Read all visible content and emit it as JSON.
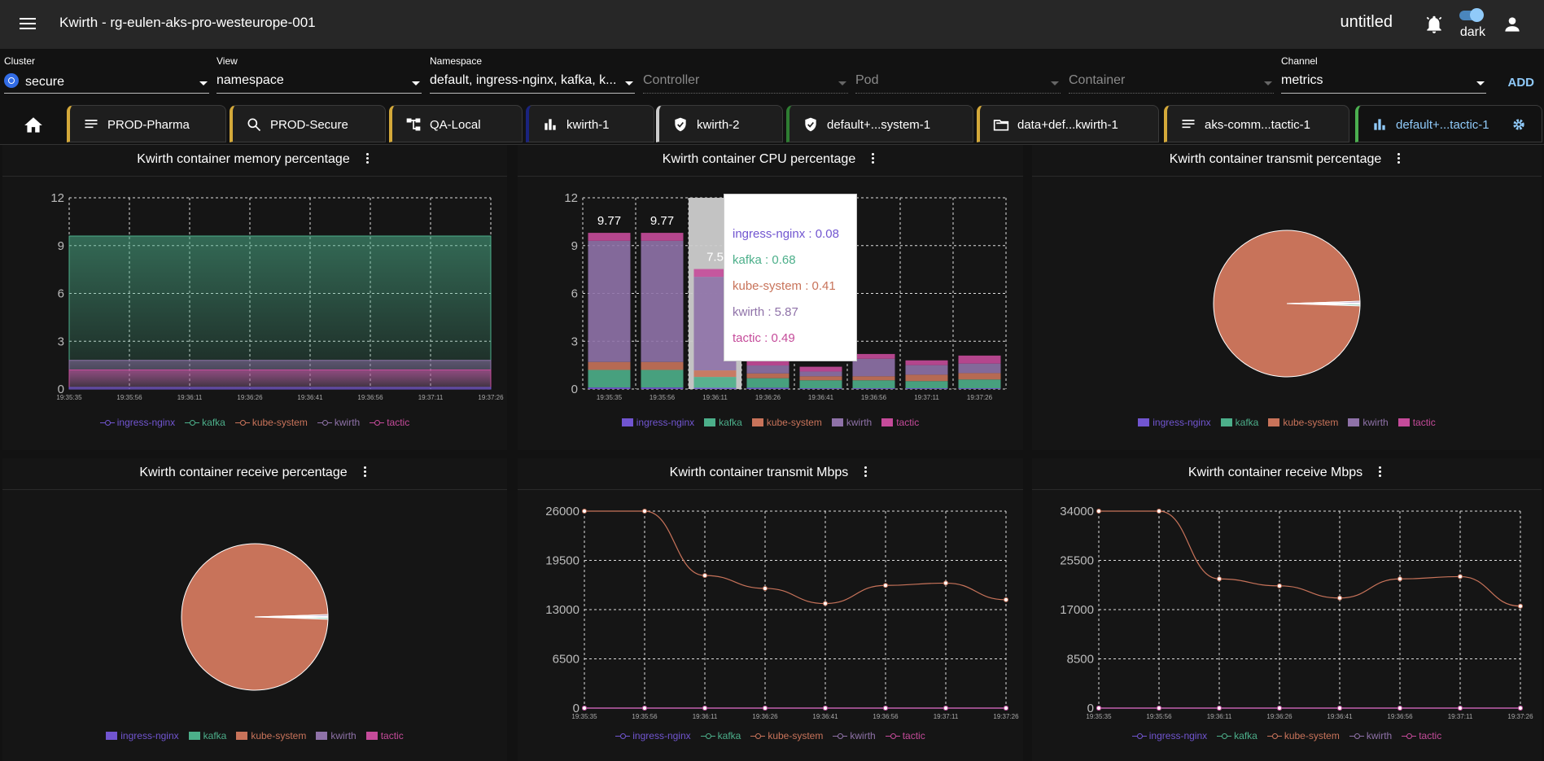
{
  "appbar": {
    "title": "Kwirth - rg-eulen-aks-pro-westeurope-001",
    "workspace": "untitled",
    "theme_label": "dark"
  },
  "filters": {
    "cluster": {
      "label": "Cluster",
      "value": "secure"
    },
    "view": {
      "label": "View",
      "value": "namespace"
    },
    "namespace": {
      "label": "Namespace",
      "value": "default, ingress-nginx, kafka, k..."
    },
    "controller": {
      "placeholder": "Controller"
    },
    "pod": {
      "placeholder": "Pod"
    },
    "container": {
      "placeholder": "Container"
    },
    "channel": {
      "label": "Channel",
      "value": "metrics"
    },
    "add_label": "ADD"
  },
  "tabs": [
    {
      "label": "PROD-Pharma",
      "icon": "lines-icon",
      "color": "#d4a93a"
    },
    {
      "label": "PROD-Secure",
      "icon": "search-icon",
      "color": "#d4a93a"
    },
    {
      "label": "QA-Local",
      "icon": "tree-icon",
      "color": "#d4a93a"
    },
    {
      "label": "kwirth-1",
      "icon": "bar-chart-icon",
      "color": "#1a237e"
    },
    {
      "label": "kwirth-2",
      "icon": "shield-icon",
      "color": "#cccccc"
    },
    {
      "label": "default+...system-1",
      "icon": "shield-icon",
      "color": "#2e7d32"
    },
    {
      "label": "data+def...kwirth-1",
      "icon": "folder-icon",
      "color": "#d4a93a"
    },
    {
      "label": "aks-comm...tactic-1",
      "icon": "lines-icon",
      "color": "#d4a93a"
    },
    {
      "label": "default+...tactic-1",
      "icon": "bar-chart-icon",
      "color": "#4caf50",
      "active": true
    }
  ],
  "series_colors": {
    "ingress-nginx": "#7155d0",
    "kafka": "#4caf8a",
    "kube-system": "#c8735a",
    "kwirth": "#8f72a8",
    "tactic": "#c54b9a"
  },
  "legend_names": [
    "ingress-nginx",
    "kafka",
    "kube-system",
    "kwirth",
    "tactic"
  ],
  "panels": {
    "memory": {
      "title": "Kwirth container memory percentage"
    },
    "cpu": {
      "title": "Kwirth container CPU percentage"
    },
    "transmit_pct": {
      "title": "Kwirth container transmit percentage"
    },
    "receive_pct": {
      "title": "Kwirth container receive percentage"
    },
    "transmit_mbps": {
      "title": "Kwirth container transmit Mbps"
    },
    "receive_mbps": {
      "title": "Kwirth container receive Mbps"
    }
  },
  "tooltip": {
    "lines": [
      {
        "text": "ingress-nginx : 0.08",
        "color": "#7155d0"
      },
      {
        "text": "kafka : 0.68",
        "color": "#4caf8a"
      },
      {
        "text": "kube-system : 0.41",
        "color": "#c8735a"
      },
      {
        "text": "kwirth : 5.87",
        "color": "#8f72a8"
      },
      {
        "text": "tactic : 0.49",
        "color": "#c54b9a"
      }
    ]
  },
  "chart_data": [
    {
      "id": "memory",
      "type": "area",
      "title": "Kwirth container memory percentage",
      "categories": [
        "19:35:35",
        "19:35:56",
        "19:36:11",
        "19:36:26",
        "19:36:41",
        "19:36:56",
        "19:37:11",
        "19:37:26"
      ],
      "ylim": [
        0,
        12
      ],
      "yticks": [
        0,
        3,
        6,
        9,
        12
      ],
      "series": [
        {
          "name": "ingress-nginx",
          "values": [
            0.1,
            0.1,
            0.1,
            0.1,
            0.1,
            0.1,
            0.1,
            0.1
          ]
        },
        {
          "name": "tactic",
          "values": [
            1.2,
            1.2,
            1.2,
            1.2,
            1.2,
            1.2,
            1.2,
            1.2
          ]
        },
        {
          "name": "kwirth",
          "values": [
            1.8,
            1.8,
            1.8,
            1.8,
            1.8,
            1.8,
            1.8,
            1.8
          ]
        },
        {
          "name": "kafka",
          "values": [
            9.6,
            9.6,
            9.6,
            9.6,
            9.6,
            9.6,
            9.6,
            9.6
          ]
        }
      ],
      "grid": true
    },
    {
      "id": "cpu",
      "type": "bar",
      "stacked": true,
      "title": "Kwirth container CPU percentage",
      "categories": [
        "19:35:35",
        "19:35:56",
        "19:36:11",
        "19:36:26",
        "19:36:41",
        "19:36:56",
        "19:37:11",
        "19:37:26"
      ],
      "ylim": [
        0,
        12
      ],
      "yticks": [
        0,
        3,
        6,
        9,
        12
      ],
      "series": [
        {
          "name": "ingress-nginx",
          "values": [
            0.1,
            0.1,
            0.08,
            0.08,
            0.05,
            0.05,
            0.05,
            0.05
          ]
        },
        {
          "name": "kafka",
          "values": [
            1.1,
            1.1,
            0.68,
            0.6,
            0.5,
            0.5,
            0.45,
            0.55
          ]
        },
        {
          "name": "kube-system",
          "values": [
            0.5,
            0.5,
            0.41,
            0.3,
            0.25,
            0.25,
            0.4,
            0.4
          ]
        },
        {
          "name": "kwirth",
          "values": [
            7.6,
            7.6,
            5.87,
            0.5,
            0.3,
            1.1,
            0.6,
            0.6
          ]
        },
        {
          "name": "tactic",
          "values": [
            0.5,
            0.5,
            0.49,
            0.4,
            0.3,
            0.3,
            0.3,
            0.5
          ]
        }
      ],
      "data_labels": [
        "9.77",
        "9.77",
        "7.5"
      ],
      "highlight_index": 2,
      "grid": true
    },
    {
      "id": "transmit_pct",
      "type": "pie",
      "title": "Kwirth container transmit percentage",
      "labels": [
        "ingress-nginx",
        "kafka",
        "kube-system",
        "kwirth",
        "tactic"
      ],
      "values": [
        0.2,
        0.3,
        99.0,
        0.3,
        0.2
      ]
    },
    {
      "id": "receive_pct",
      "type": "pie",
      "title": "Kwirth container receive percentage",
      "labels": [
        "ingress-nginx",
        "kafka",
        "kube-system",
        "kwirth",
        "tactic"
      ],
      "values": [
        0.2,
        0.3,
        99.0,
        0.3,
        0.2
      ]
    },
    {
      "id": "transmit_mbps",
      "type": "line",
      "title": "Kwirth container transmit Mbps",
      "categories": [
        "19:35:35",
        "19:35:56",
        "19:36:11",
        "19:36:26",
        "19:36:41",
        "19:36:56",
        "19:37:11",
        "19:37:26"
      ],
      "ylim": [
        0,
        26000
      ],
      "yticks": [
        0,
        6500,
        13000,
        19500,
        26000
      ],
      "series": [
        {
          "name": "ingress-nginx",
          "values": [
            0,
            0,
            0,
            0,
            0,
            0,
            0,
            0
          ]
        },
        {
          "name": "kafka",
          "values": [
            0,
            0,
            0,
            0,
            0,
            0,
            0,
            0
          ]
        },
        {
          "name": "kube-system",
          "values": [
            26000,
            26000,
            17500,
            15800,
            13800,
            16200,
            16500,
            14300
          ]
        },
        {
          "name": "kwirth",
          "values": [
            0,
            0,
            0,
            0,
            0,
            0,
            0,
            0
          ]
        },
        {
          "name": "tactic",
          "values": [
            0,
            0,
            0,
            0,
            0,
            0,
            0,
            0
          ]
        }
      ],
      "grid": true
    },
    {
      "id": "receive_mbps",
      "type": "line",
      "title": "Kwirth container receive Mbps",
      "categories": [
        "19:35:35",
        "19:35:56",
        "19:36:11",
        "19:36:26",
        "19:36:41",
        "19:36:56",
        "19:37:11",
        "19:37:26"
      ],
      "ylim": [
        0,
        34000
      ],
      "yticks": [
        0,
        8500,
        17000,
        25500,
        34000
      ],
      "series": [
        {
          "name": "ingress-nginx",
          "values": [
            0,
            0,
            0,
            0,
            0,
            0,
            0,
            0
          ]
        },
        {
          "name": "kafka",
          "values": [
            0,
            0,
            0,
            0,
            0,
            0,
            0,
            0
          ]
        },
        {
          "name": "kube-system",
          "values": [
            34800,
            34800,
            22300,
            21100,
            19000,
            22300,
            22700,
            17600
          ]
        },
        {
          "name": "kwirth",
          "values": [
            0,
            0,
            0,
            0,
            0,
            0,
            0,
            0
          ]
        },
        {
          "name": "tactic",
          "values": [
            0,
            0,
            0,
            0,
            0,
            0,
            0,
            0
          ]
        }
      ],
      "grid": true
    }
  ]
}
